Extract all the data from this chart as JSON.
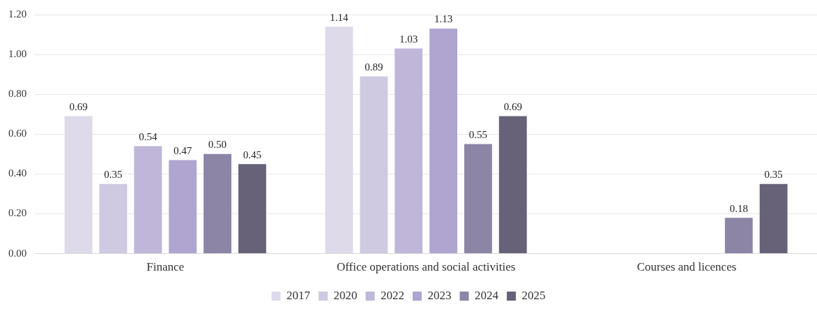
{
  "chart_data": {
    "type": "bar",
    "categories": [
      "Finance",
      "Office operations and social activities",
      "Courses and licences"
    ],
    "series": [
      {
        "name": "2017",
        "color": "#dedae9",
        "values": [
          0.69,
          1.14,
          null
        ],
        "value_labels": [
          "0.69",
          "1.14",
          null
        ]
      },
      {
        "name": "2020",
        "color": "#cfc9e1",
        "values": [
          0.35,
          0.89,
          null
        ],
        "value_labels": [
          "0.35",
          "0.89",
          null
        ]
      },
      {
        "name": "2022",
        "color": "#bfb6d9",
        "values": [
          0.54,
          1.03,
          null
        ],
        "value_labels": [
          "0.54",
          "1.03",
          null
        ]
      },
      {
        "name": "2023",
        "color": "#b0a5d0",
        "values": [
          0.47,
          1.13,
          null
        ],
        "value_labels": [
          "0.47",
          "1.13",
          null
        ]
      },
      {
        "name": "2024",
        "color": "#8c85a6",
        "values": [
          0.5,
          0.55,
          0.18
        ],
        "value_labels": [
          "0.50",
          "0.55",
          "0.18"
        ]
      },
      {
        "name": "2025",
        "color": "#686278",
        "values": [
          0.45,
          0.69,
          0.35
        ],
        "value_labels": [
          "0.45",
          "0.69",
          "0.35"
        ]
      }
    ],
    "ylim": [
      0,
      1.2
    ],
    "yticks": [
      {
        "value": 0,
        "label": "0.00"
      },
      {
        "value": 0.2,
        "label": "0.20"
      },
      {
        "value": 0.4,
        "label": "0.40"
      },
      {
        "value": 0.6,
        "label": "0.60"
      },
      {
        "value": 0.8,
        "label": "0.80"
      },
      {
        "value": 1.0,
        "label": "1.00"
      },
      {
        "value": 1.2,
        "label": "1.20"
      }
    ],
    "grid": "y",
    "legend": "bottom"
  }
}
